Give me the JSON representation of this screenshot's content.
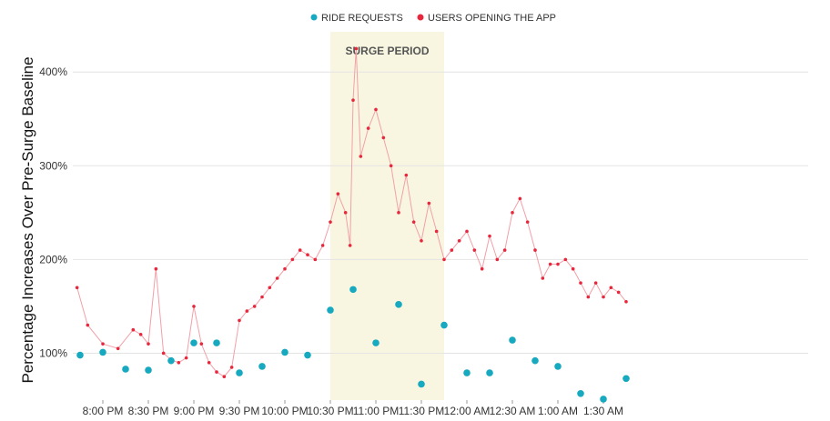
{
  "chart_data": {
    "type": "scatter",
    "ylabel": "Percentage Increases Over Pre-Surge Baseline",
    "xlabel": "",
    "xlim": [
      "7:43 PM",
      "1:45 AM"
    ],
    "ylim": [
      50,
      440
    ],
    "y_unit": "%",
    "grid": "horizontal",
    "legend_position": "top-center",
    "x_tick_labels": [
      "8:00 PM",
      "8:30 PM",
      "9:00 PM",
      "9:30 PM",
      "10:00 PM",
      "10:30 PM",
      "11:00 PM",
      "11:30 PM",
      "12:00 AM",
      "12:30 AM",
      "1:00 AM",
      "1:30 AM"
    ],
    "y_tick_labels": [
      "100%",
      "200%",
      "300%",
      "400%"
    ],
    "annotation": {
      "label": "SURGE PERIOD",
      "start": "10:30 PM",
      "end": "11:45 PM",
      "color": "#f8f6e1"
    },
    "series": [
      {
        "name": "RIDE REQUESTS",
        "color": "#17a9bf",
        "x": [
          "7:45 PM",
          "8:00 PM",
          "8:15 PM",
          "8:30 PM",
          "8:45 PM",
          "9:00 PM",
          "9:15 PM",
          "9:30 PM",
          "9:45 PM",
          "10:00 PM",
          "10:15 PM",
          "10:30 PM",
          "10:45 PM",
          "11:00 PM",
          "11:15 PM",
          "11:30 PM",
          "11:45 PM",
          "12:00 AM",
          "12:15 AM",
          "12:30 AM",
          "12:45 AM",
          "1:00 AM",
          "1:15 AM",
          "1:30 AM",
          "1:45 AM"
        ],
        "values": [
          98,
          101,
          83,
          82,
          92,
          111,
          111,
          79,
          86,
          101,
          98,
          146,
          168,
          111,
          152,
          67,
          130,
          79,
          79,
          114,
          92,
          86,
          57,
          51,
          73
        ]
      },
      {
        "name": "USERS OPENING THE APP",
        "color": "#e8273c",
        "x": [
          "7:43 PM",
          "7:50 PM",
          "8:00 PM",
          "8:10 PM",
          "8:20 PM",
          "8:25 PM",
          "8:30 PM",
          "8:35 PM",
          "8:40 PM",
          "8:45 PM",
          "8:50 PM",
          "8:55 PM",
          "9:00 PM",
          "9:05 PM",
          "9:10 PM",
          "9:15 PM",
          "9:20 PM",
          "9:25 PM",
          "9:30 PM",
          "9:35 PM",
          "9:40 PM",
          "9:45 PM",
          "9:50 PM",
          "9:55 PM",
          "10:00 PM",
          "10:05 PM",
          "10:10 PM",
          "10:15 PM",
          "10:20 PM",
          "10:25 PM",
          "10:30 PM",
          "10:35 PM",
          "10:40 PM",
          "10:43 PM",
          "10:45 PM",
          "10:47 PM",
          "10:50 PM",
          "10:55 PM",
          "11:00 PM",
          "11:05 PM",
          "11:10 PM",
          "11:15 PM",
          "11:20 PM",
          "11:25 PM",
          "11:30 PM",
          "11:35 PM",
          "11:40 PM",
          "11:45 PM",
          "11:50 PM",
          "11:55 PM",
          "12:00 AM",
          "12:05 AM",
          "12:10 AM",
          "12:15 AM",
          "12:20 AM",
          "12:25 AM",
          "12:30 AM",
          "12:35 AM",
          "12:40 AM",
          "12:45 AM",
          "12:50 AM",
          "12:55 AM",
          "1:00 AM",
          "1:05 AM",
          "1:10 AM",
          "1:15 AM",
          "1:20 AM",
          "1:25 AM",
          "1:30 AM",
          "1:35 AM",
          "1:40 AM",
          "1:45 AM"
        ],
        "values": [
          170,
          130,
          110,
          105,
          125,
          120,
          110,
          190,
          100,
          93,
          90,
          95,
          150,
          110,
          90,
          80,
          75,
          85,
          135,
          145,
          150,
          160,
          170,
          180,
          190,
          200,
          210,
          205,
          200,
          215,
          240,
          270,
          250,
          215,
          370,
          425,
          310,
          340,
          360,
          330,
          300,
          250,
          290,
          240,
          220,
          260,
          230,
          200,
          210,
          220,
          230,
          210,
          190,
          225,
          200,
          210,
          250,
          265,
          240,
          210,
          180,
          195,
          195,
          200,
          190,
          175,
          160,
          175,
          160,
          170,
          165,
          155
        ]
      }
    ]
  }
}
